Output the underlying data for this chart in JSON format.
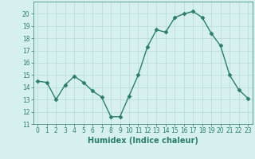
{
  "x": [
    0,
    1,
    2,
    3,
    4,
    5,
    6,
    7,
    8,
    9,
    10,
    11,
    12,
    13,
    14,
    15,
    16,
    17,
    18,
    19,
    20,
    21,
    22,
    23
  ],
  "y": [
    14.5,
    14.4,
    13.0,
    14.2,
    14.9,
    14.4,
    13.7,
    13.2,
    11.6,
    11.6,
    13.3,
    15.0,
    17.3,
    18.7,
    18.5,
    19.7,
    20.0,
    20.2,
    19.7,
    18.4,
    17.4,
    15.0,
    13.8,
    13.1
  ],
  "line_color": "#2d7d6e",
  "marker": "D",
  "markersize": 2.5,
  "linewidth": 1.0,
  "bg_color": "#d6f0ef",
  "grid_color": "#b8d8d5",
  "xlabel": "Humidex (Indice chaleur)",
  "ylim": [
    11,
    21
  ],
  "xlim": [
    -0.5,
    23.5
  ],
  "yticks": [
    11,
    12,
    13,
    14,
    15,
    16,
    17,
    18,
    19,
    20
  ],
  "xticks": [
    0,
    1,
    2,
    3,
    4,
    5,
    6,
    7,
    8,
    9,
    10,
    11,
    12,
    13,
    14,
    15,
    16,
    17,
    18,
    19,
    20,
    21,
    22,
    23
  ],
  "tick_fontsize": 5.5,
  "xlabel_fontsize": 7.0
}
